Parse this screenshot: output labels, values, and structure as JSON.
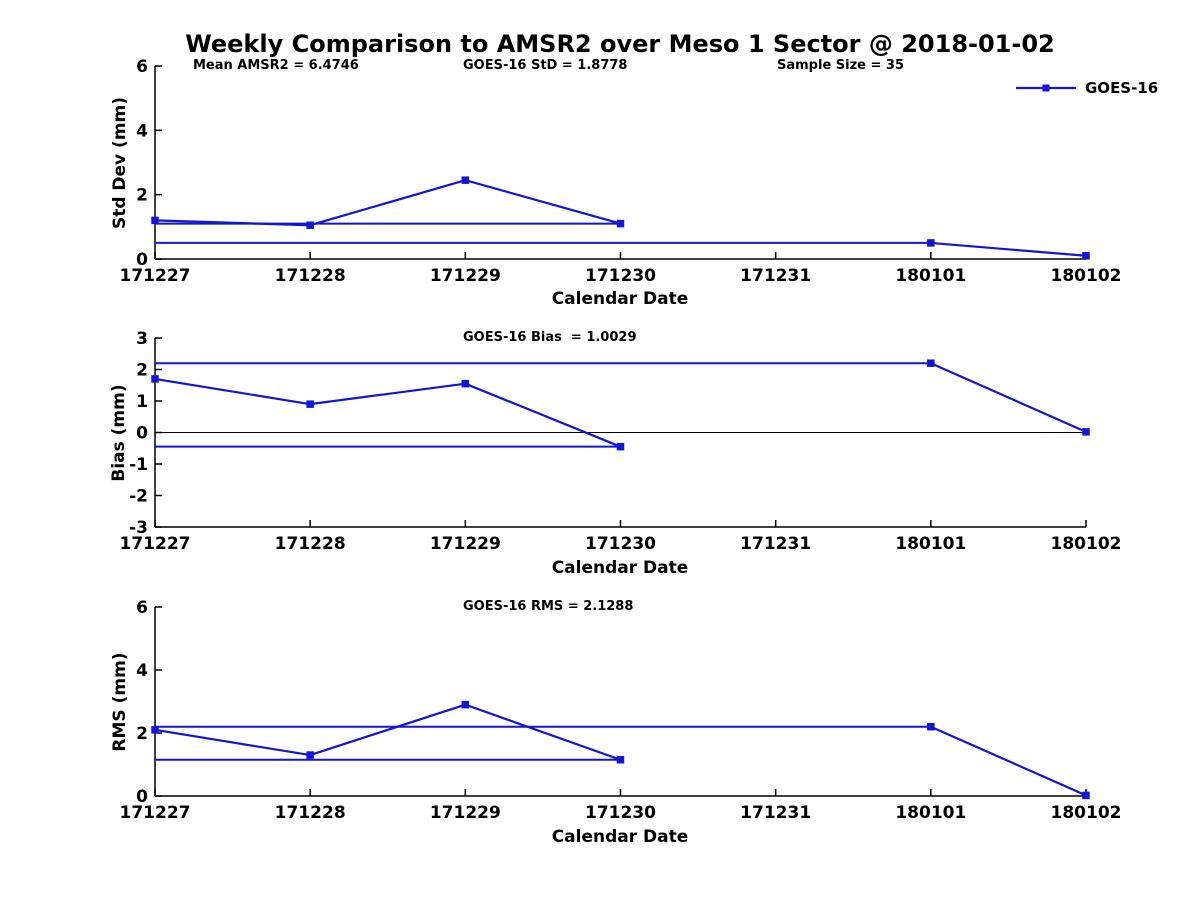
{
  "title": "Weekly Comparison to AMSR2 over Meso 1 Sector @ 2018-01-02",
  "legend": {
    "label": "GOES-16"
  },
  "colors": {
    "series": "#1414D6",
    "axis": "#000000",
    "background": "#FFFFFF"
  },
  "stats": {
    "mean_amsr2": 6.4746,
    "goes16_std": 1.8778,
    "sample_size": 35,
    "goes16_bias": 1.0029,
    "goes16_rms": 2.1288
  },
  "chart_data": [
    {
      "type": "line",
      "ylabel": "Std Dev (mm)",
      "xlabel": "Calendar Date",
      "categories": [
        "171227",
        "171228",
        "171229",
        "171230",
        "171231",
        "180101",
        "180102"
      ],
      "ylim": [
        0,
        6
      ],
      "yticks": [
        0,
        2,
        4,
        6
      ],
      "annotations": [
        "Mean AMSR2 = 6.4746",
        "GOES-16 StD = 1.8778",
        "Sample Size = 35"
      ],
      "series": [
        {
          "name": "GOES-16",
          "values": [
            1.2,
            1.05,
            2.45,
            1.1,
            null,
            0.5,
            0.1
          ]
        }
      ],
      "reference_lines": [
        {
          "y": 1.1,
          "from_category": "171227",
          "to_category": "171230"
        },
        {
          "y": 0.5,
          "from_category": "171227",
          "to_category": "180101"
        }
      ],
      "zero_line": false,
      "grid": false,
      "legend_position": "top-right"
    },
    {
      "type": "line",
      "ylabel": "Bias (mm)",
      "xlabel": "Calendar Date",
      "categories": [
        "171227",
        "171228",
        "171229",
        "171230",
        "171231",
        "180101",
        "180102"
      ],
      "ylim": [
        -3,
        3
      ],
      "yticks": [
        -3,
        -2,
        -1,
        0,
        1,
        2,
        3
      ],
      "annotations": [
        "GOES-16 Bias  = 1.0029"
      ],
      "series": [
        {
          "name": "GOES-16",
          "values": [
            1.7,
            0.9,
            1.55,
            -0.45,
            null,
            2.2,
            0.02
          ]
        }
      ],
      "reference_lines": [
        {
          "y": -0.45,
          "from_category": "171227",
          "to_category": "171230"
        },
        {
          "y": 2.2,
          "from_category": "171227",
          "to_category": "180101"
        }
      ],
      "zero_line": true,
      "grid": false
    },
    {
      "type": "line",
      "ylabel": "RMS (mm)",
      "xlabel": "Calendar Date",
      "categories": [
        "171227",
        "171228",
        "171229",
        "171230",
        "171231",
        "180101",
        "180102"
      ],
      "ylim": [
        0,
        6
      ],
      "yticks": [
        0,
        2,
        4,
        6
      ],
      "annotations": [
        "GOES-16 RMS = 2.1288"
      ],
      "series": [
        {
          "name": "GOES-16",
          "values": [
            2.1,
            1.3,
            2.9,
            1.15,
            null,
            2.2,
            0.02
          ]
        }
      ],
      "reference_lines": [
        {
          "y": 1.15,
          "from_category": "171227",
          "to_category": "171230"
        },
        {
          "y": 2.2,
          "from_category": "171227",
          "to_category": "180101"
        }
      ],
      "zero_line": false,
      "grid": false
    }
  ]
}
